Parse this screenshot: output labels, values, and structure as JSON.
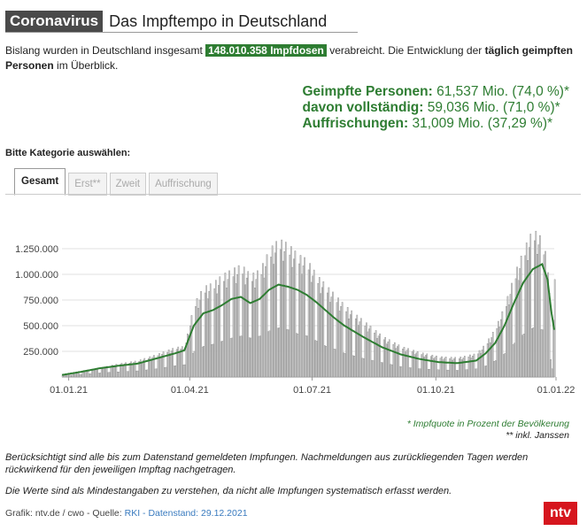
{
  "header": {
    "badge": "Coronavirus",
    "title": "Das Impftempo in Deutschland"
  },
  "intro": {
    "pre": "Bislang wurden in Deutschland insgesamt ",
    "highlight": "148.010.358 Impfdosen",
    "mid": " verabreicht. Die Entwicklung der ",
    "bold": "täglich geimpften Personen",
    "post": " im Überblick."
  },
  "stats": [
    {
      "label": "Geimpfte Personen:",
      "value": " 61,537 Mio. (74,0 %)*"
    },
    {
      "label": "davon vollständig:",
      "value": " 59,036 Mio. (71,0 %)*"
    },
    {
      "label": "Auffrischungen:",
      "value": " 31,009 Mio. (37,29 %)*"
    }
  ],
  "category_label": "Bitte Kategorie auswählen:",
  "tabs": [
    "Gesamt",
    "Erst**",
    "Zweit",
    "Auffrischung"
  ],
  "notes": {
    "line1": "* Impfquote in Prozent der Bevölkerung",
    "line2": "** inkl. Janssen"
  },
  "footnotes": [
    "Berücksichtigt sind alle bis zum Datenstand gemeldeten Impfungen. Nachmeldungen aus zurückliegenden Tagen werden rückwirkend für den jeweiligen Impftag nachgetragen.",
    "Die Werte sind als Mindestangaben zu verstehen, da nicht alle Impfungen systematisch erfasst werden."
  ],
  "source": {
    "pre": "Grafik: ntv.de / cwo - Quelle: ",
    "link": "RKI - Datenstand: 29.12.2021"
  },
  "logo": "ntv",
  "colors": {
    "accent": "#2e7d32",
    "bars": "#c8c8c8",
    "logo": "#d6161e"
  },
  "chart_data": {
    "type": "bar",
    "x_range": [
      "2020-12-27",
      "2021-12-28"
    ],
    "xticks": [
      "01.01.21",
      "01.04.21",
      "01.07.21",
      "01.10.21",
      "01.01.22"
    ],
    "yticks": [
      "250.000",
      "500.000",
      "750.000",
      "1.000.000",
      "1.250.000"
    ],
    "ylim": [
      0,
      1500000
    ],
    "grid": "horizontal",
    "daily_weekly_mean_points": [
      {
        "date": "2020-12-27",
        "weekday": 20000,
        "weekend": 15000,
        "avg": 20000
      },
      {
        "date": "2021-01-10",
        "weekday": 60000,
        "weekend": 25000,
        "avg": 50000
      },
      {
        "date": "2021-01-24",
        "weekday": 90000,
        "weekend": 40000,
        "avg": 85000
      },
      {
        "date": "2021-02-07",
        "weekday": 130000,
        "weekend": 50000,
        "avg": 110000
      },
      {
        "date": "2021-02-21",
        "weekday": 160000,
        "weekend": 60000,
        "avg": 130000
      },
      {
        "date": "2021-03-07",
        "weekday": 220000,
        "weekend": 80000,
        "avg": 180000
      },
      {
        "date": "2021-03-21",
        "weekday": 290000,
        "weekend": 110000,
        "avg": 230000
      },
      {
        "date": "2021-03-28",
        "weekday": 300000,
        "weekend": 120000,
        "avg": 260000
      },
      {
        "date": "2021-04-04",
        "weekday": 720000,
        "weekend": 250000,
        "avg": 500000
      },
      {
        "date": "2021-04-11",
        "weekday": 880000,
        "weekend": 300000,
        "avg": 620000
      },
      {
        "date": "2021-04-18",
        "weekday": 920000,
        "weekend": 320000,
        "avg": 650000
      },
      {
        "date": "2021-04-25",
        "weekday": 1000000,
        "weekend": 350000,
        "avg": 700000
      },
      {
        "date": "2021-05-02",
        "weekday": 1050000,
        "weekend": 380000,
        "avg": 760000
      },
      {
        "date": "2021-05-09",
        "weekday": 1100000,
        "weekend": 400000,
        "avg": 780000
      },
      {
        "date": "2021-05-16",
        "weekday": 1000000,
        "weekend": 380000,
        "avg": 720000
      },
      {
        "date": "2021-05-23",
        "weekday": 1050000,
        "weekend": 400000,
        "avg": 760000
      },
      {
        "date": "2021-05-30",
        "weekday": 1250000,
        "weekend": 450000,
        "avg": 850000
      },
      {
        "date": "2021-06-06",
        "weekday": 1350000,
        "weekend": 480000,
        "avg": 900000
      },
      {
        "date": "2021-06-13",
        "weekday": 1300000,
        "weekend": 460000,
        "avg": 880000
      },
      {
        "date": "2021-06-20",
        "weekday": 1200000,
        "weekend": 420000,
        "avg": 850000
      },
      {
        "date": "2021-06-27",
        "weekday": 1150000,
        "weekend": 400000,
        "avg": 800000
      },
      {
        "date": "2021-07-04",
        "weekday": 1000000,
        "weekend": 350000,
        "avg": 730000
      },
      {
        "date": "2021-07-11",
        "weekday": 900000,
        "weekend": 300000,
        "avg": 650000
      },
      {
        "date": "2021-07-18",
        "weekday": 800000,
        "weekend": 270000,
        "avg": 570000
      },
      {
        "date": "2021-07-25",
        "weekday": 700000,
        "weekend": 230000,
        "avg": 500000
      },
      {
        "date": "2021-08-08",
        "weekday": 550000,
        "weekend": 180000,
        "avg": 390000
      },
      {
        "date": "2021-08-22",
        "weekday": 400000,
        "weekend": 140000,
        "avg": 290000
      },
      {
        "date": "2021-09-05",
        "weekday": 300000,
        "weekend": 100000,
        "avg": 220000
      },
      {
        "date": "2021-09-19",
        "weekday": 240000,
        "weekend": 80000,
        "avg": 175000
      },
      {
        "date": "2021-10-03",
        "weekday": 200000,
        "weekend": 70000,
        "avg": 145000
      },
      {
        "date": "2021-10-17",
        "weekday": 190000,
        "weekend": 65000,
        "avg": 135000
      },
      {
        "date": "2021-10-31",
        "weekday": 230000,
        "weekend": 80000,
        "avg": 160000
      },
      {
        "date": "2021-11-07",
        "weekday": 330000,
        "weekend": 110000,
        "avg": 230000
      },
      {
        "date": "2021-11-14",
        "weekday": 480000,
        "weekend": 160000,
        "avg": 330000
      },
      {
        "date": "2021-11-21",
        "weekday": 700000,
        "weekend": 230000,
        "avg": 500000
      },
      {
        "date": "2021-11-28",
        "weekday": 1000000,
        "weekend": 330000,
        "avg": 720000
      },
      {
        "date": "2021-12-05",
        "weekday": 1250000,
        "weekend": 420000,
        "avg": 920000
      },
      {
        "date": "2021-12-12",
        "weekday": 1450000,
        "weekend": 480000,
        "avg": 1050000
      },
      {
        "date": "2021-12-19",
        "weekday": 1350000,
        "weekend": 460000,
        "avg": 1100000
      },
      {
        "date": "2021-12-23",
        "weekday": 1100000,
        "weekend": 350000,
        "avg": 950000
      },
      {
        "date": "2021-12-26",
        "weekday": 250000,
        "weekend": 80000,
        "avg": 620000
      },
      {
        "date": "2021-12-28",
        "weekday": 950000,
        "weekend": 300000,
        "avg": 460000
      }
    ]
  }
}
